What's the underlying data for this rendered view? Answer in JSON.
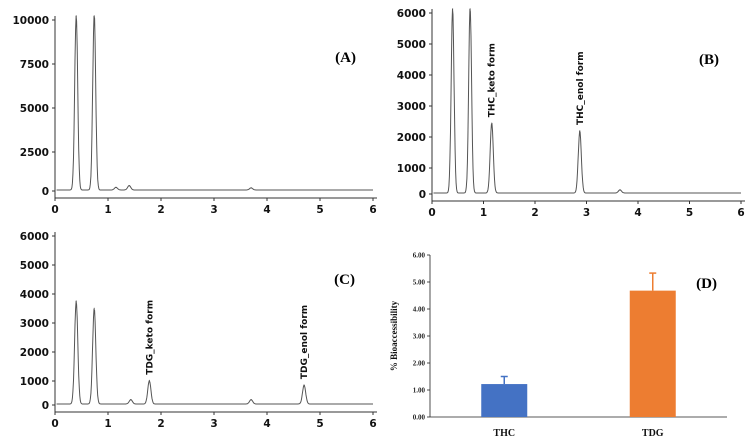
{
  "chart_data": [
    {
      "type": "line",
      "panel_label": "(A)",
      "xlim": [
        0,
        6
      ],
      "ylim": [
        0,
        10000
      ],
      "x_ticks": [
        "0",
        "1",
        "2",
        "3",
        "4",
        "5",
        "6"
      ],
      "y_ticks": [
        "0",
        "2500",
        "5000",
        "7500",
        "10000"
      ],
      "peaks": [
        {
          "x": 0.4,
          "y": 10000,
          "label": ""
        },
        {
          "x": 0.74,
          "y": 10000,
          "label": ""
        },
        {
          "x": 1.15,
          "y": 150,
          "label": ""
        },
        {
          "x": 1.4,
          "y": 250,
          "label": ""
        },
        {
          "x": 3.7,
          "y": 120,
          "label": ""
        }
      ]
    },
    {
      "type": "line",
      "panel_label": "(B)",
      "xlim": [
        0,
        6
      ],
      "ylim": [
        0,
        6000
      ],
      "x_ticks": [
        "0",
        "1",
        "2",
        "3",
        "4",
        "5",
        "6"
      ],
      "y_ticks": [
        "0",
        "1000",
        "2000",
        "3000",
        "4000",
        "5000",
        "6000"
      ],
      "peaks": [
        {
          "x": 0.4,
          "y": 6000,
          "label": ""
        },
        {
          "x": 0.74,
          "y": 6000,
          "label": ""
        },
        {
          "x": 1.16,
          "y": 2250,
          "label": "THC_keto form"
        },
        {
          "x": 2.87,
          "y": 2000,
          "label": "THC_enol form"
        },
        {
          "x": 3.65,
          "y": 100,
          "label": ""
        }
      ]
    },
    {
      "type": "line",
      "panel_label": "(C)",
      "xlim": [
        0,
        6
      ],
      "ylim": [
        0,
        6000
      ],
      "x_ticks": [
        "0",
        "1",
        "2",
        "3",
        "4",
        "5",
        "6"
      ],
      "y_ticks": [
        "0",
        "1000",
        "2000",
        "3000",
        "4000",
        "5000",
        "6000"
      ],
      "peaks": [
        {
          "x": 0.4,
          "y": 3550,
          "label": ""
        },
        {
          "x": 0.74,
          "y": 3300,
          "label": ""
        },
        {
          "x": 1.43,
          "y": 150,
          "label": ""
        },
        {
          "x": 1.78,
          "y": 800,
          "label": "TDG_keto form"
        },
        {
          "x": 3.7,
          "y": 150,
          "label": ""
        },
        {
          "x": 4.7,
          "y": 650,
          "label": "TDG_enol form"
        }
      ]
    },
    {
      "type": "bar",
      "panel_label": "(D)",
      "categories": [
        "THC",
        "TDG"
      ],
      "values": [
        1.22,
        4.68
      ],
      "errors": [
        0.28,
        0.65
      ],
      "colors": [
        "#4472C4",
        "#ED7D31"
      ],
      "ylabel": "% Bioaccessibility",
      "ylim": [
        0,
        6
      ],
      "y_ticks": [
        "0.00",
        "1.00",
        "2.00",
        "3.00",
        "4.00",
        "5.00",
        "6.00"
      ]
    }
  ]
}
